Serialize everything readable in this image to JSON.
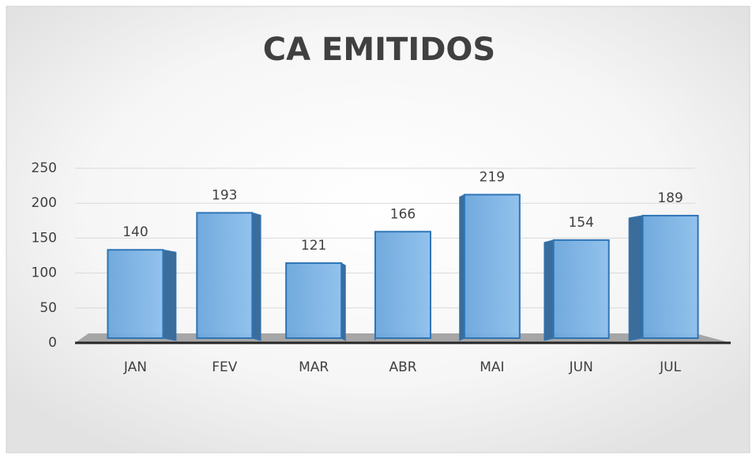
{
  "chart_data": {
    "type": "bar",
    "title": "CA EMITIDOS",
    "categories": [
      "JAN",
      "FEV",
      "MAR",
      "ABR",
      "MAI",
      "JUN",
      "JUL"
    ],
    "values": [
      140,
      193,
      121,
      166,
      219,
      154,
      189
    ],
    "color": "#5b9bd5",
    "ylim": [
      0,
      250
    ],
    "yticks": [
      0,
      50,
      100,
      150,
      200,
      250
    ],
    "grid": true
  }
}
